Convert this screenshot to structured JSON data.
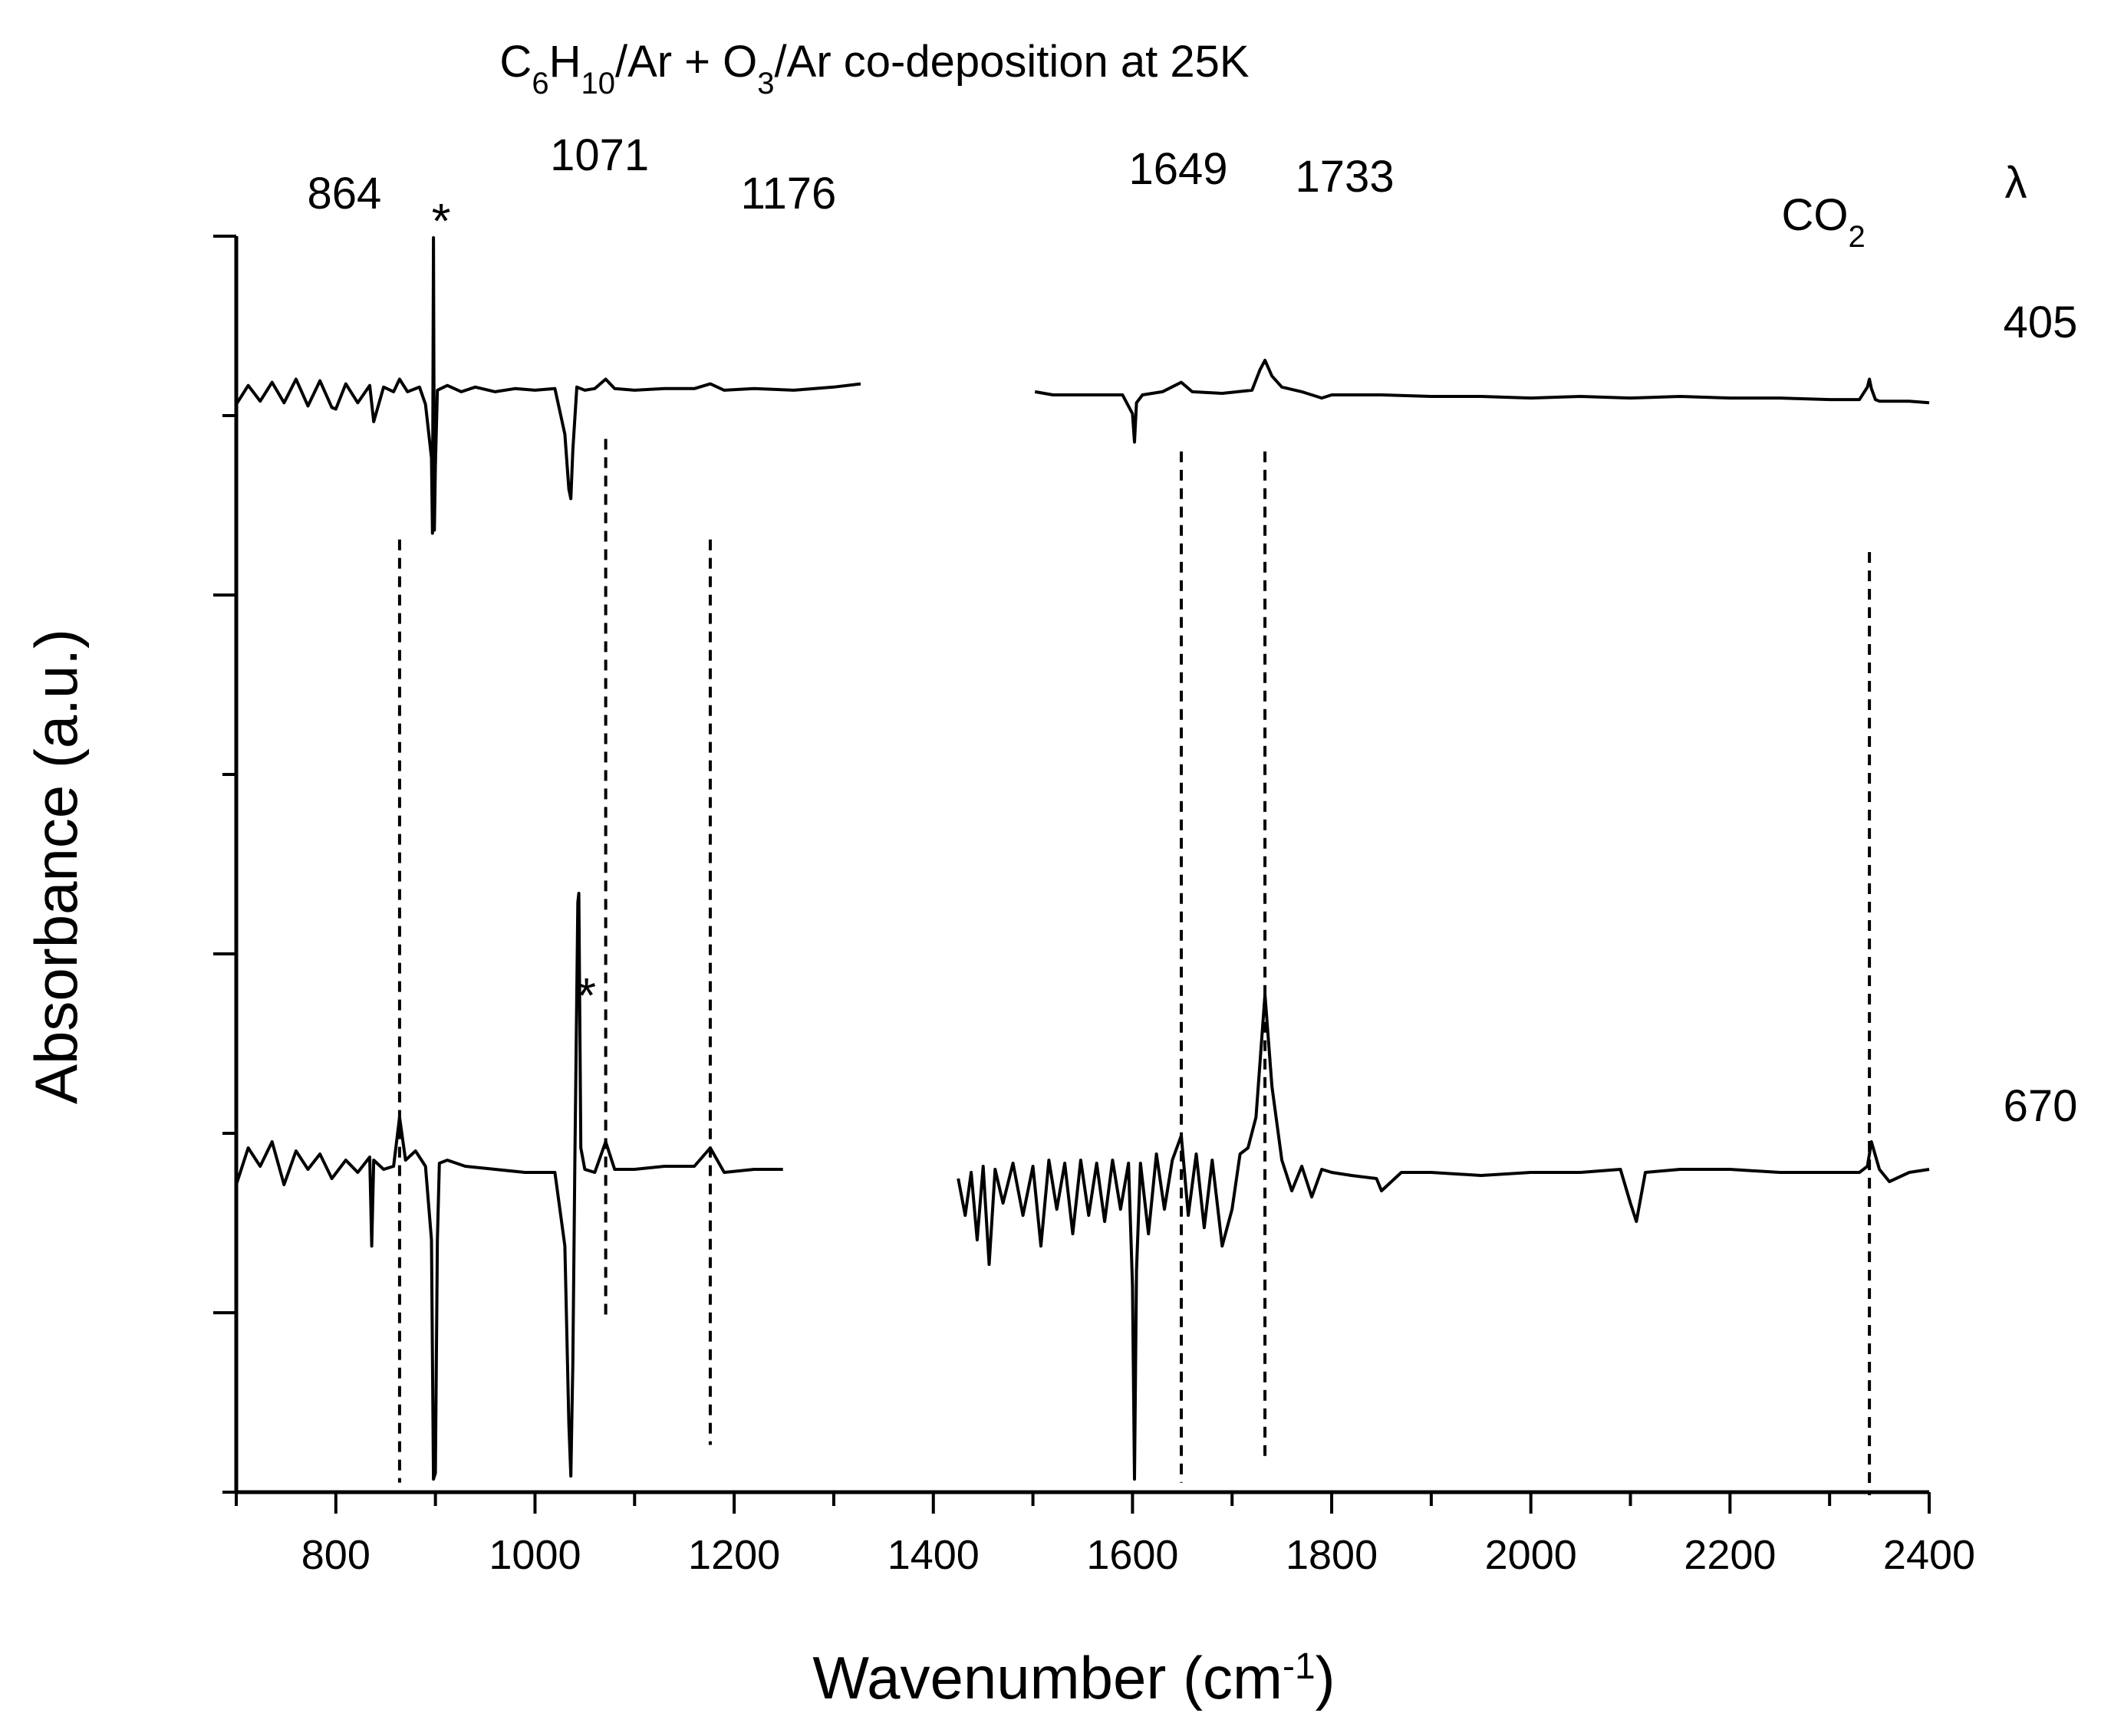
{
  "chart_data": {
    "type": "line",
    "title": {
      "a": "C",
      "a_sub": "6",
      "b": "H",
      "b_sub": "10",
      "c": "/Ar + O",
      "c_sub": "3",
      "d": "/Ar co-deposition at 25K"
    },
    "xlabel": {
      "main": "Wavenumber (cm",
      "sup": "-1",
      "end": ")"
    },
    "ylabel": "Absorbance (a.u.)",
    "xlim": [
      700,
      2400
    ],
    "x_ticks": [
      800,
      1000,
      1200,
      1400,
      1600,
      1800,
      2000,
      2200,
      2400
    ],
    "y_range": [
      -1.0,
      1.0
    ],
    "lambda_label": "λ",
    "reference_lines": [
      {
        "x": 864,
        "label": "864",
        "y_top": 0.52,
        "y_bottom": -0.98
      },
      {
        "x": 1071,
        "label": "1071",
        "y_top": 0.68,
        "y_bottom": -0.72
      },
      {
        "x": 1176,
        "label": "1176",
        "y_top": 0.52,
        "y_bottom": -0.92
      },
      {
        "x": 1649,
        "label": "1649",
        "y_top": 0.66,
        "y_bottom": -0.98
      },
      {
        "x": 1733,
        "label": "1733",
        "y_top": 0.66,
        "y_bottom": -0.94
      },
      {
        "x": 2340,
        "label": "CO",
        "label_sub": "2",
        "y_top": 0.5,
        "y_bottom": -1.0
      }
    ],
    "asterisks": [
      {
        "x": 898,
        "y": 0.62,
        "text": "*"
      },
      {
        "x": 1044,
        "y": -0.3,
        "text": "*"
      }
    ],
    "series": [
      {
        "name": "405",
        "baseline": 0.0,
        "segments": [
          {
            "x": [
              700,
              712,
              724,
              736,
              748,
              760,
              772,
              784,
              796,
              800,
              810,
              822,
              834,
              838,
              848,
              858,
              864,
              872,
              884,
              890,
              896,
              897,
              898,
              899,
              900,
              902,
              912,
              926,
              940,
              960,
              980,
              1000,
              1020,
              1030,
              1034,
              1036,
              1038,
              1042,
              1050,
              1060,
              1071,
              1080,
              1100,
              1130,
              1160,
              1176,
              1190,
              1220,
              1260,
              1300,
              1327
            ],
            "y": [
              -0.06,
              0.06,
              -0.04,
              0.08,
              -0.05,
              0.1,
              -0.07,
              0.09,
              -0.08,
              -0.09,
              0.07,
              -0.05,
              0.06,
              -0.17,
              0.05,
              0.02,
              0.1,
              0.02,
              0.05,
              -0.06,
              -0.4,
              -0.88,
              1.0,
              -0.86,
              -0.45,
              0.03,
              0.06,
              0.02,
              0.05,
              0.02,
              0.04,
              0.03,
              0.04,
              -0.25,
              -0.6,
              -0.66,
              -0.35,
              0.05,
              0.03,
              0.04,
              0.1,
              0.04,
              0.03,
              0.04,
              0.04,
              0.07,
              0.03,
              0.04,
              0.03,
              0.05,
              0.07
            ]
          },
          {
            "x": [
              1502,
              1520,
              1560,
              1590,
              1600,
              1602,
              1604,
              1610,
              1630,
              1649,
              1660,
              1690,
              1720,
              1728,
              1733,
              1740,
              1750,
              1770,
              1790,
              1800,
              1850,
              1900,
              1950,
              2000,
              2050,
              2100,
              2150,
              2200,
              2250,
              2300,
              2330,
              2338,
              2340,
              2342,
              2346,
              2350,
              2380,
              2400
            ],
            "y": [
              0.02,
              0.0,
              0.0,
              0.0,
              -0.12,
              -0.3,
              -0.05,
              0.0,
              0.02,
              0.08,
              0.02,
              0.01,
              0.03,
              0.16,
              0.22,
              0.12,
              0.05,
              0.02,
              -0.02,
              0.0,
              0.0,
              -0.01,
              -0.01,
              -0.02,
              -0.01,
              -0.02,
              -0.01,
              -0.02,
              -0.02,
              -0.03,
              -0.03,
              0.05,
              0.1,
              0.04,
              -0.03,
              -0.04,
              -0.04,
              -0.05
            ]
          }
        ]
      },
      {
        "name": "670",
        "baseline": 0.0,
        "segments": [
          {
            "x": [
              700,
              712,
              724,
              736,
              748,
              760,
              772,
              784,
              796,
              810,
              822,
              834,
              836,
              838,
              848,
              858,
              864,
              870,
              880,
              890,
              896,
              898,
              900,
              902,
              904,
              912,
              930,
              960,
              990,
              1020,
              1030,
              1034,
              1036,
              1038,
              1040,
              1043,
              1044,
              1046,
              1050,
              1060,
              1071,
              1080,
              1100,
              1130,
              1160,
              1176,
              1190,
              1220,
              1249
            ],
            "y": [
              -0.02,
              0.1,
              0.04,
              0.12,
              -0.02,
              0.09,
              0.03,
              0.08,
              0.0,
              0.06,
              0.02,
              0.07,
              -0.22,
              0.06,
              0.03,
              0.04,
              0.2,
              0.06,
              0.09,
              0.04,
              -0.2,
              -0.98,
              -0.96,
              -0.2,
              0.05,
              0.06,
              0.04,
              0.03,
              0.02,
              0.02,
              -0.22,
              -0.8,
              -0.97,
              -0.6,
              0.05,
              0.9,
              0.93,
              0.1,
              0.03,
              0.02,
              0.12,
              0.03,
              0.03,
              0.04,
              0.04,
              0.1,
              0.02,
              0.03,
              0.03
            ]
          },
          {
            "x": [
              1425,
              1432,
              1438,
              1444,
              1450,
              1456,
              1462,
              1470,
              1480,
              1490,
              1500,
              1508,
              1516,
              1524,
              1532,
              1540,
              1548,
              1556,
              1564,
              1572,
              1580,
              1588,
              1596,
              1600,
              1602,
              1604,
              1608,
              1616,
              1624,
              1632,
              1640,
              1649,
              1656,
              1664,
              1672,
              1680,
              1690,
              1700,
              1708,
              1716,
              1724,
              1733,
              1740,
              1750,
              1760,
              1770,
              1780,
              1790,
              1800,
              1820,
              1845,
              1850,
              1870,
              1900,
              1950,
              2000,
              2050,
              2090,
              2100,
              2106,
              2115,
              2150,
              2200,
              2250,
              2300,
              2330,
              2338,
              2342,
              2350,
              2360,
              2380,
              2400
            ],
            "y": [
              0.0,
              -0.12,
              0.02,
              -0.2,
              0.04,
              -0.28,
              0.03,
              -0.08,
              0.05,
              -0.12,
              0.04,
              -0.22,
              0.06,
              -0.1,
              0.05,
              -0.18,
              0.06,
              -0.12,
              0.05,
              -0.14,
              0.06,
              -0.1,
              0.05,
              -0.35,
              -0.98,
              -0.3,
              0.05,
              -0.18,
              0.08,
              -0.1,
              0.06,
              0.14,
              -0.12,
              0.08,
              -0.16,
              0.06,
              -0.22,
              -0.1,
              0.08,
              0.1,
              0.2,
              0.6,
              0.3,
              0.06,
              -0.04,
              0.04,
              -0.06,
              0.03,
              0.02,
              0.01,
              0.0,
              -0.04,
              0.02,
              0.02,
              0.01,
              0.02,
              0.02,
              0.03,
              -0.08,
              -0.14,
              0.02,
              0.03,
              0.03,
              0.02,
              0.02,
              0.02,
              0.04,
              0.12,
              0.03,
              -0.01,
              0.02,
              0.03
            ]
          }
        ]
      }
    ]
  }
}
